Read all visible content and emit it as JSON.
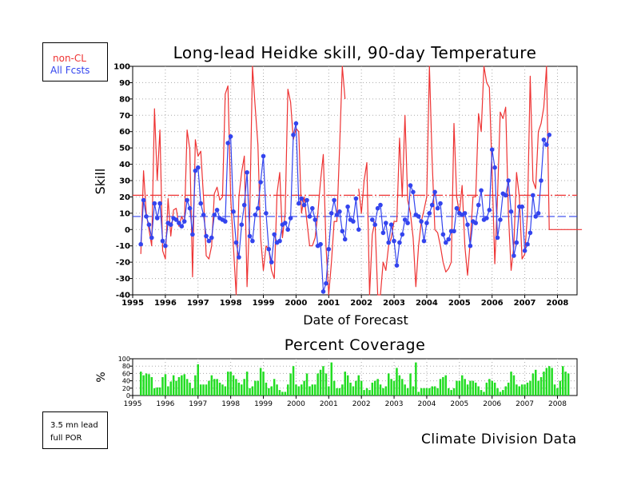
{
  "chart_data": [
    {
      "type": "line",
      "title": "Long-lead Heidke skill, 90-day Temperature",
      "xlabel": "Date of Forecast",
      "ylabel": "Skill",
      "xlim": [
        1995.0,
        2008.6
      ],
      "ylim": [
        -40,
        100
      ],
      "x_ticks": [
        "1995",
        "1996",
        "1997",
        "1998",
        "1999",
        "2000",
        "2001",
        "2002",
        "2003",
        "2004",
        "2005",
        "2006",
        "2007",
        "2008"
      ],
      "y_ticks": [
        "-40",
        "-30",
        "-20",
        "-10",
        "0",
        "10",
        "20",
        "30",
        "40",
        "50",
        "60",
        "70",
        "80",
        "90",
        "100"
      ],
      "grid": "dotted",
      "x_start": 1995.25,
      "x_step": 0.08333,
      "series": [
        {
          "name": "non-CL",
          "color": "#ee3333",
          "mean": 21,
          "values": [
            -15,
            36,
            10,
            0,
            -10,
            74,
            30,
            61,
            -13,
            -18,
            19,
            -4,
            12,
            13,
            2,
            8,
            4,
            61,
            49,
            -29,
            55,
            45,
            48,
            20,
            -16,
            -18,
            -10,
            22,
            26,
            18,
            20,
            83,
            88,
            20,
            -10,
            -40,
            20,
            35,
            45,
            -35,
            10,
            100,
            75,
            52,
            -5,
            -25,
            -10,
            -12,
            -25,
            -30,
            22,
            35,
            -5,
            10,
            86,
            78,
            55,
            62,
            60,
            10,
            20,
            5,
            -10,
            -10,
            -5,
            10,
            30,
            46,
            -10,
            -40,
            -20,
            5,
            5,
            50,
            100,
            80,
            null,
            null,
            null,
            null,
            25,
            10,
            30,
            41,
            -40,
            -3,
            5,
            -45,
            -40,
            -20,
            -25,
            -10,
            -5,
            5,
            5,
            56,
            20,
            70,
            18,
            10,
            -5,
            -35,
            -10,
            5,
            12,
            20,
            100,
            42,
            0,
            -2,
            -10,
            -20,
            -26,
            -24,
            -20,
            65,
            20,
            10,
            27,
            -10,
            -28,
            -7,
            20,
            20,
            71,
            60,
            100,
            90,
            87,
            35,
            -21,
            20,
            72,
            68,
            75,
            10,
            -25,
            -10,
            35,
            20,
            -18,
            -15,
            10,
            94,
            30,
            25,
            60,
            65,
            75,
            100,
            0,
            0,
            0,
            0,
            0,
            0,
            0,
            0,
            0,
            0,
            0,
            0,
            0
          ]
        },
        {
          "name": "All Fcsts",
          "color": "#3344ee",
          "mean": 8,
          "values": [
            -9,
            18,
            8,
            3,
            -5,
            16,
            7,
            16,
            -7,
            -10,
            4,
            3,
            7,
            6,
            4,
            2,
            5,
            18,
            13,
            -3,
            36,
            38,
            16,
            9,
            -4,
            -7,
            -5,
            9,
            12,
            7,
            6,
            5,
            53,
            57,
            11,
            -8,
            -17,
            3,
            15,
            35,
            -4,
            -7,
            9,
            13,
            29,
            45,
            10,
            -12,
            -20,
            -3,
            -8,
            -7,
            3,
            4,
            0,
            7,
            58,
            65,
            16,
            19,
            15,
            18,
            8,
            13,
            6,
            -10,
            -9,
            -38,
            -33,
            -12,
            10,
            18,
            9,
            11,
            -1,
            -6,
            14,
            6,
            5,
            19,
            0,
            null,
            null,
            null,
            null,
            6,
            3,
            13,
            15,
            -2,
            4,
            -8,
            3,
            -7,
            -22,
            -8,
            -3,
            6,
            4,
            27,
            23,
            9,
            8,
            5,
            -7,
            4,
            10,
            15,
            23,
            13,
            16,
            -3,
            -8,
            -6,
            -1,
            -1,
            13,
            10,
            9,
            10,
            3,
            -10,
            5,
            4,
            15,
            24,
            6,
            7,
            12,
            49,
            38,
            -5,
            6,
            22,
            21,
            30,
            11,
            -16,
            -8,
            14,
            14,
            -13,
            -9,
            -2,
            21,
            8,
            10,
            30,
            55,
            52,
            58
          ]
        }
      ]
    },
    {
      "type": "bar",
      "title": "Percent Coverage",
      "ylabel": "%",
      "xlim": [
        1995.0,
        2008.6
      ],
      "ylim": [
        0,
        100
      ],
      "x_ticks": [
        "1995",
        "1996",
        "1997",
        "1998",
        "1999",
        "2000",
        "2001",
        "2002",
        "2003",
        "2004",
        "2005",
        "2006",
        "2007",
        "2008"
      ],
      "y_ticks": [
        "0",
        "20",
        "40",
        "60",
        "80",
        "100"
      ],
      "x_start": 1995.25,
      "x_step": 0.08333,
      "color": "#22dd22",
      "values": [
        65,
        55,
        60,
        58,
        50,
        20,
        22,
        22,
        50,
        58,
        25,
        38,
        55,
        40,
        50,
        55,
        58,
        45,
        35,
        20,
        55,
        85,
        30,
        30,
        30,
        40,
        55,
        45,
        45,
        35,
        30,
        25,
        65,
        65,
        55,
        45,
        35,
        30,
        45,
        65,
        20,
        25,
        40,
        40,
        75,
        65,
        35,
        20,
        25,
        45,
        30,
        15,
        10,
        10,
        30,
        60,
        80,
        30,
        25,
        30,
        40,
        60,
        25,
        30,
        30,
        60,
        70,
        80,
        60,
        25,
        90,
        40,
        20,
        20,
        30,
        65,
        55,
        35,
        25,
        40,
        55,
        40,
        15,
        20,
        15,
        35,
        40,
        45,
        30,
        20,
        25,
        60,
        45,
        40,
        75,
        55,
        45,
        30,
        20,
        60,
        25,
        90,
        10,
        20,
        20,
        20,
        20,
        25,
        25,
        20,
        45,
        50,
        55,
        20,
        15,
        20,
        40,
        40,
        55,
        45,
        30,
        40,
        40,
        35,
        25,
        15,
        10,
        35,
        45,
        40,
        35,
        20,
        10,
        15,
        25,
        35,
        65,
        55,
        30,
        25,
        30,
        30,
        35,
        40,
        60,
        70,
        40,
        50,
        65,
        75,
        80,
        75,
        30,
        20,
        40,
        80,
        65,
        60,
        0,
        0,
        0,
        0,
        0,
        0,
        0,
        0,
        0,
        0,
        0,
        0
      ]
    }
  ],
  "legend": {
    "noncl_label": "non-CL",
    "all_label": "All Fcsts"
  },
  "info": {
    "lead_text": "3.5 mn lead",
    "por_text": "full POR"
  },
  "footer": "Climate Division Data"
}
